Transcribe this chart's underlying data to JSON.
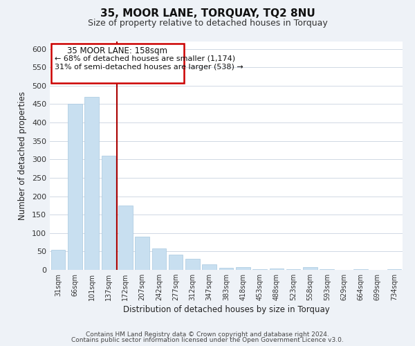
{
  "title": "35, MOOR LANE, TORQUAY, TQ2 8NU",
  "subtitle": "Size of property relative to detached houses in Torquay",
  "xlabel": "Distribution of detached houses by size in Torquay",
  "ylabel": "Number of detached properties",
  "bar_labels": [
    "31sqm",
    "66sqm",
    "101sqm",
    "137sqm",
    "172sqm",
    "207sqm",
    "242sqm",
    "277sqm",
    "312sqm",
    "347sqm",
    "383sqm",
    "418sqm",
    "453sqm",
    "488sqm",
    "523sqm",
    "558sqm",
    "593sqm",
    "629sqm",
    "664sqm",
    "699sqm",
    "734sqm"
  ],
  "bar_values": [
    55,
    450,
    470,
    310,
    175,
    90,
    58,
    42,
    30,
    15,
    6,
    8,
    1,
    4,
    1,
    8,
    1,
    0,
    2,
    0,
    2
  ],
  "bar_color": "#c8dff0",
  "bar_edge_color": "#a8c8e0",
  "vline_color": "#aa0000",
  "annotation_title": "35 MOOR LANE: 158sqm",
  "annotation_line1": "← 68% of detached houses are smaller (1,174)",
  "annotation_line2": "31% of semi-detached houses are larger (538) →",
  "annotation_box_color": "#cc0000",
  "annotation_bg": "#ffffff",
  "ylim": [
    0,
    620
  ],
  "yticks": [
    0,
    50,
    100,
    150,
    200,
    250,
    300,
    350,
    400,
    450,
    500,
    550,
    600
  ],
  "footer1": "Contains HM Land Registry data © Crown copyright and database right 2024.",
  "footer2": "Contains public sector information licensed under the Open Government Licence v3.0.",
  "bg_color": "#eef2f7",
  "plot_bg_color": "#ffffff",
  "grid_color": "#d0d8e4"
}
